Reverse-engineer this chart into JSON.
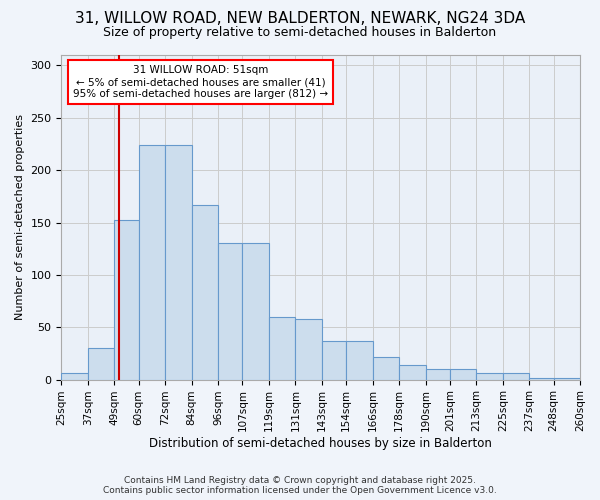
{
  "title": "31, WILLOW ROAD, NEW BALDERTON, NEWARK, NG24 3DA",
  "subtitle": "Size of property relative to semi-detached houses in Balderton",
  "xlabel": "Distribution of semi-detached houses by size in Balderton",
  "ylabel": "Number of semi-detached properties",
  "footer_line1": "Contains HM Land Registry data © Crown copyright and database right 2025.",
  "footer_line2": "Contains public sector information licensed under the Open Government Licence v3.0.",
  "annotation_title": "31 WILLOW ROAD: 51sqm",
  "annotation_line1": "← 5% of semi-detached houses are smaller (41)",
  "annotation_line2": "95% of semi-detached houses are larger (812) →",
  "vline_x": 51,
  "bar_left_edges": [
    25,
    37,
    49,
    60,
    72,
    84,
    96,
    107,
    119,
    131,
    143,
    154,
    166,
    178,
    190,
    201,
    213,
    225,
    237,
    248,
    260
  ],
  "bar_heights": [
    6,
    30,
    152,
    224,
    224,
    167,
    130,
    130,
    60,
    58,
    37,
    37,
    22,
    14,
    10,
    10,
    6,
    6,
    2,
    2,
    0
  ],
  "bar_color": "#ccdded",
  "bar_edge_color": "#6699cc",
  "vline_color": "#cc0000",
  "grid_color": "#cccccc",
  "bg_color": "#eaf0f8",
  "fig_color": "#f0f4fa",
  "ylim": [
    0,
    310
  ],
  "yticks": [
    0,
    50,
    100,
    150,
    200,
    250,
    300
  ],
  "tick_labels": [
    "25sqm",
    "37sqm",
    "49sqm",
    "60sqm",
    "72sqm",
    "84sqm",
    "96sqm",
    "107sqm",
    "119sqm",
    "131sqm",
    "143sqm",
    "154sqm",
    "166sqm",
    "178sqm",
    "190sqm",
    "201sqm",
    "213sqm",
    "225sqm",
    "237sqm",
    "248sqm",
    "260sqm"
  ],
  "title_fontsize": 11,
  "subtitle_fontsize": 9,
  "xlabel_fontsize": 8.5,
  "ylabel_fontsize": 8,
  "xtick_fontsize": 7.5,
  "ytick_fontsize": 8,
  "annotation_fontsize": 7.5,
  "footer_fontsize": 6.5
}
